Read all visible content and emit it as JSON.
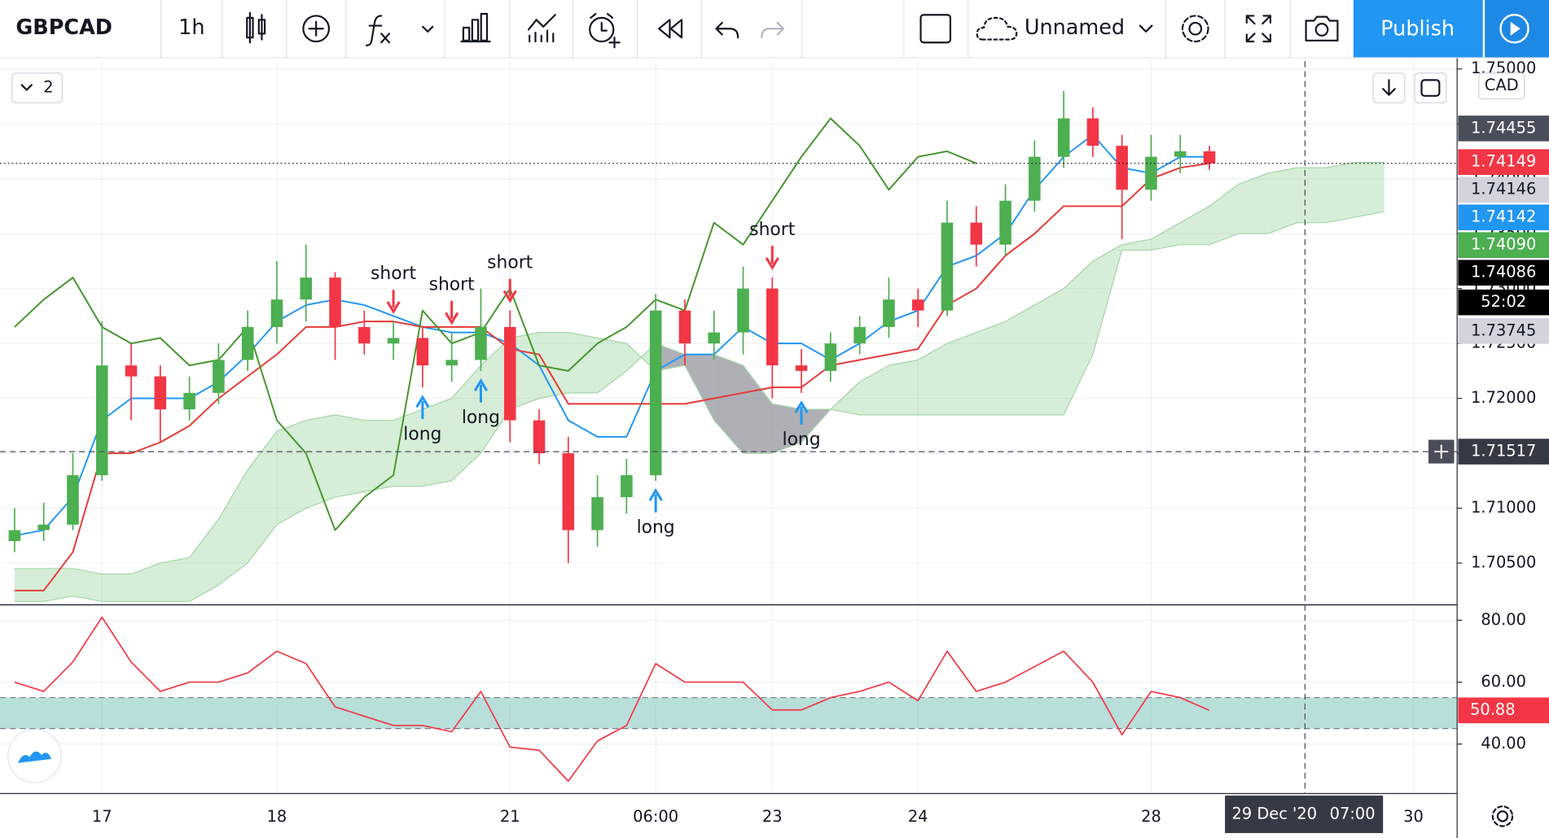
{
  "toolbar": {
    "symbol": "GBPCAD",
    "interval": "1h",
    "chart_name": "Unnamed",
    "publish": "Publish"
  },
  "pane_count": "2",
  "currency": "CAD",
  "price_badges": [
    {
      "label": "1.74455",
      "color": "#4a4e5a",
      "text_color": "#ffffff"
    },
    {
      "label": "1.74149",
      "color": "#f23645",
      "text_color": "#ffffff"
    },
    {
      "label": "1.74146",
      "color": "#d1d4dc",
      "text_color": "#131722"
    },
    {
      "label": "1.74142",
      "color": "#2196f3",
      "text_color": "#ffffff"
    },
    {
      "label": "1.74090",
      "color": "#4caf50",
      "text_color": "#ffffff"
    },
    {
      "label": "1.74086",
      "color": "#000000",
      "text_color": "#ffffff"
    },
    {
      "label": "52:02",
      "color": "#000000",
      "text_color": "#ffffff"
    },
    {
      "label": "1.73745",
      "color": "#d1d4dc",
      "text_color": "#131722"
    }
  ],
  "crosshair": {
    "price": "1.71517",
    "date": "29 Dec '20",
    "time": "07:00"
  },
  "chart_data": [
    {
      "type": "candlestick",
      "categories": [
        null,
        null,
        null,
        "17",
        null,
        null,
        null,
        null,
        null,
        "18",
        null,
        null,
        null,
        null,
        null,
        null,
        null,
        "21",
        null,
        null,
        null,
        null,
        "06:00",
        null,
        null,
        null,
        "23",
        null,
        null,
        null,
        null,
        "24",
        null,
        null,
        null,
        null,
        null,
        null,
        null,
        "28",
        null,
        null,
        null,
        null,
        null,
        null,
        null,
        null,
        "30",
        null
      ],
      "open": [
        1.707,
        1.708,
        1.7085,
        1.713,
        1.723,
        1.722,
        1.719,
        1.7205,
        1.7235,
        1.7265,
        1.729,
        1.731,
        1.7265,
        1.725,
        1.7255,
        1.723,
        1.7235,
        1.7265,
        1.718,
        1.715,
        1.708,
        1.711,
        1.713,
        1.728,
        1.725,
        1.726,
        1.73,
        1.723,
        1.7225,
        1.725,
        1.7265,
        1.729,
        1.728,
        1.736,
        1.734,
        1.738,
        1.742,
        1.7455,
        1.743,
        1.739,
        1.742,
        1.7425,
        null,
        null,
        null,
        null,
        null,
        null,
        null,
        null
      ],
      "high": [
        1.71,
        1.7105,
        1.715,
        1.727,
        1.725,
        1.723,
        1.722,
        1.725,
        1.728,
        1.7325,
        1.734,
        1.7315,
        1.728,
        1.727,
        1.7265,
        1.726,
        1.73,
        1.728,
        1.719,
        1.7165,
        1.713,
        1.7145,
        1.7295,
        1.729,
        1.728,
        1.732,
        1.731,
        1.7245,
        1.726,
        1.7275,
        1.731,
        1.73,
        1.738,
        1.7375,
        1.7395,
        1.7435,
        1.748,
        1.7465,
        1.744,
        1.744,
        1.744,
        1.743,
        null,
        null,
        null,
        null,
        null,
        null,
        null,
        null
      ],
      "low": [
        1.706,
        1.707,
        1.708,
        1.7125,
        1.718,
        1.716,
        1.718,
        1.7195,
        1.7225,
        1.725,
        1.727,
        1.7235,
        1.724,
        1.7235,
        1.721,
        1.7215,
        1.7225,
        1.716,
        1.714,
        1.705,
        1.7065,
        1.7095,
        1.7125,
        1.723,
        1.7235,
        1.724,
        1.72,
        1.7205,
        1.7215,
        1.724,
        1.7255,
        1.7265,
        1.7275,
        1.732,
        1.733,
        1.737,
        1.741,
        1.742,
        1.7345,
        1.738,
        1.7405,
        1.7408,
        null,
        null,
        null,
        null,
        null,
        null,
        null,
        null
      ],
      "close": [
        1.708,
        1.7085,
        1.713,
        1.723,
        1.722,
        1.719,
        1.7205,
        1.7235,
        1.7265,
        1.729,
        1.731,
        1.7265,
        1.725,
        1.7255,
        1.723,
        1.7235,
        1.7265,
        1.718,
        1.715,
        1.708,
        1.711,
        1.713,
        1.728,
        1.725,
        1.726,
        1.73,
        1.723,
        1.7225,
        1.725,
        1.7265,
        1.729,
        1.728,
        1.736,
        1.734,
        1.738,
        1.742,
        1.7455,
        1.743,
        1.739,
        1.742,
        1.7425,
        1.7414,
        null,
        null,
        null,
        null,
        null,
        null,
        null,
        null
      ],
      "up_color": "#4caf50",
      "down_color": "#f23645",
      "series": [
        {
          "color": "#2196f3",
          "values": [
            1.7075,
            1.708,
            1.711,
            1.718,
            1.72,
            1.72,
            1.72,
            1.7215,
            1.724,
            1.727,
            1.7285,
            1.729,
            1.7285,
            1.7275,
            1.7265,
            1.726,
            1.726,
            1.725,
            1.723,
            1.718,
            1.7165,
            1.7165,
            1.7225,
            1.724,
            1.724,
            1.7265,
            1.725,
            1.725,
            1.7235,
            1.725,
            1.727,
            1.728,
            1.732,
            1.733,
            1.735,
            1.739,
            1.742,
            1.744,
            1.741,
            1.7405,
            1.742,
            1.742,
            null,
            null,
            null,
            null,
            null,
            null,
            null,
            null
          ]
        },
        {
          "color": "#e53935",
          "values": [
            1.7025,
            1.7025,
            1.706,
            1.715,
            1.715,
            1.716,
            1.7175,
            1.72,
            1.722,
            1.724,
            1.7265,
            1.7265,
            1.727,
            1.727,
            1.7265,
            1.7265,
            1.7265,
            1.7245,
            1.724,
            1.7195,
            1.7195,
            1.7195,
            1.7195,
            1.7195,
            1.72,
            1.7205,
            1.721,
            1.721,
            1.723,
            1.7235,
            1.724,
            1.7245,
            1.7285,
            1.73,
            1.733,
            1.735,
            1.7375,
            1.7375,
            1.7375,
            1.74,
            1.741,
            1.7414,
            null,
            null,
            null,
            null,
            null,
            null,
            null,
            null
          ]
        },
        {
          "color": "#43942c",
          "values": [
            1.7265,
            1.729,
            1.731,
            1.7265,
            1.725,
            1.7255,
            1.723,
            1.7235,
            1.7265,
            1.718,
            1.715,
            1.708,
            1.711,
            1.713,
            1.728,
            1.725,
            1.726,
            1.73,
            1.723,
            1.7225,
            1.725,
            1.7265,
            1.729,
            1.728,
            1.736,
            1.734,
            1.738,
            1.742,
            1.7455,
            1.743,
            1.739,
            1.742,
            1.7425,
            1.7414,
            null,
            null,
            null,
            null,
            null,
            null,
            null,
            null,
            null,
            null,
            null,
            null,
            null,
            null,
            null,
            null
          ]
        }
      ],
      "cloud": {
        "up_color": "#a5d6a7",
        "down_color": "#787b86",
        "span_a": [
          1.7045,
          1.7045,
          1.7045,
          1.704,
          1.704,
          1.705,
          1.7055,
          1.709,
          1.7135,
          1.717,
          1.718,
          1.7185,
          1.718,
          1.718,
          1.719,
          1.72,
          1.723,
          1.7255,
          1.726,
          1.726,
          1.7255,
          1.725,
          1.7225,
          1.723,
          1.718,
          1.715,
          1.715,
          1.716,
          1.719,
          1.7215,
          1.723,
          1.7235,
          1.725,
          1.726,
          1.727,
          1.7285,
          1.73,
          1.7325,
          1.734,
          1.7345,
          1.736,
          1.7375,
          1.7395,
          1.7405,
          1.741,
          1.741,
          1.7415,
          1.7415,
          null,
          null
        ],
        "span_b": [
          1.7015,
          1.7015,
          1.702,
          1.7015,
          1.7015,
          1.7015,
          1.7015,
          1.703,
          1.705,
          1.7085,
          1.71,
          1.711,
          1.7115,
          1.712,
          1.712,
          1.7125,
          1.715,
          1.719,
          1.72,
          1.7205,
          1.7205,
          1.7225,
          1.725,
          1.724,
          1.724,
          1.723,
          1.7195,
          1.719,
          1.719,
          1.7185,
          1.7185,
          1.7185,
          1.7185,
          1.7185,
          1.7185,
          1.7185,
          1.7185,
          1.724,
          1.7335,
          1.7335,
          1.734,
          1.734,
          1.735,
          1.735,
          1.736,
          1.736,
          1.7365,
          1.737,
          null,
          null
        ]
      },
      "signals": [
        null,
        null,
        null,
        null,
        null,
        null,
        null,
        null,
        null,
        null,
        null,
        null,
        null,
        "short",
        "long",
        "short",
        "long",
        "short",
        null,
        null,
        null,
        null,
        "long",
        null,
        null,
        null,
        "short",
        "long",
        null,
        null,
        null,
        null,
        null,
        null,
        null,
        null,
        null,
        null,
        null,
        null,
        null,
        null,
        null,
        null,
        null,
        null,
        null,
        null,
        null,
        null
      ],
      "ylim": [
        1.7012,
        1.7507
      ],
      "yticks": [
        {
          "value": 1.705,
          "label": "1.70500"
        },
        {
          "value": 1.71,
          "label": "1.71000"
        },
        {
          "value": 1.715,
          "label": "1.71500"
        },
        {
          "value": 1.72,
          "label": "1.72000"
        },
        {
          "value": 1.725,
          "label": "1.72500"
        },
        {
          "value": 1.73,
          "label": "1.73000"
        },
        {
          "value": 1.735,
          "label": "1.73500"
        },
        {
          "value": 1.74,
          "label": "1.74000"
        },
        {
          "value": 1.745,
          "label": "1.74500"
        },
        {
          "value": 1.75,
          "label": "1.75000"
        }
      ],
      "grid": true
    },
    {
      "type": "line",
      "values": [
        60,
        57,
        66.5,
        81,
        66.5,
        57,
        60,
        60,
        63,
        70,
        66,
        52,
        49,
        46,
        46,
        44,
        57,
        39,
        38,
        28,
        41,
        46,
        66,
        60,
        60,
        60,
        51,
        51,
        55,
        57,
        60,
        54,
        70,
        57,
        60,
        65,
        70,
        60,
        43,
        57,
        55,
        50.88,
        null,
        null,
        null,
        null,
        null,
        null,
        null,
        null
      ],
      "color": "#f23645",
      "last_value": 50.88,
      "band": [
        45,
        55
      ],
      "band_color": "#80c4bd",
      "ylim": [
        24,
        85
      ],
      "yticks": [
        {
          "value": 80,
          "label": "80.00"
        },
        {
          "value": 60,
          "label": "60.00"
        },
        {
          "value": 40,
          "label": "40.00"
        }
      ],
      "grid": true
    }
  ]
}
